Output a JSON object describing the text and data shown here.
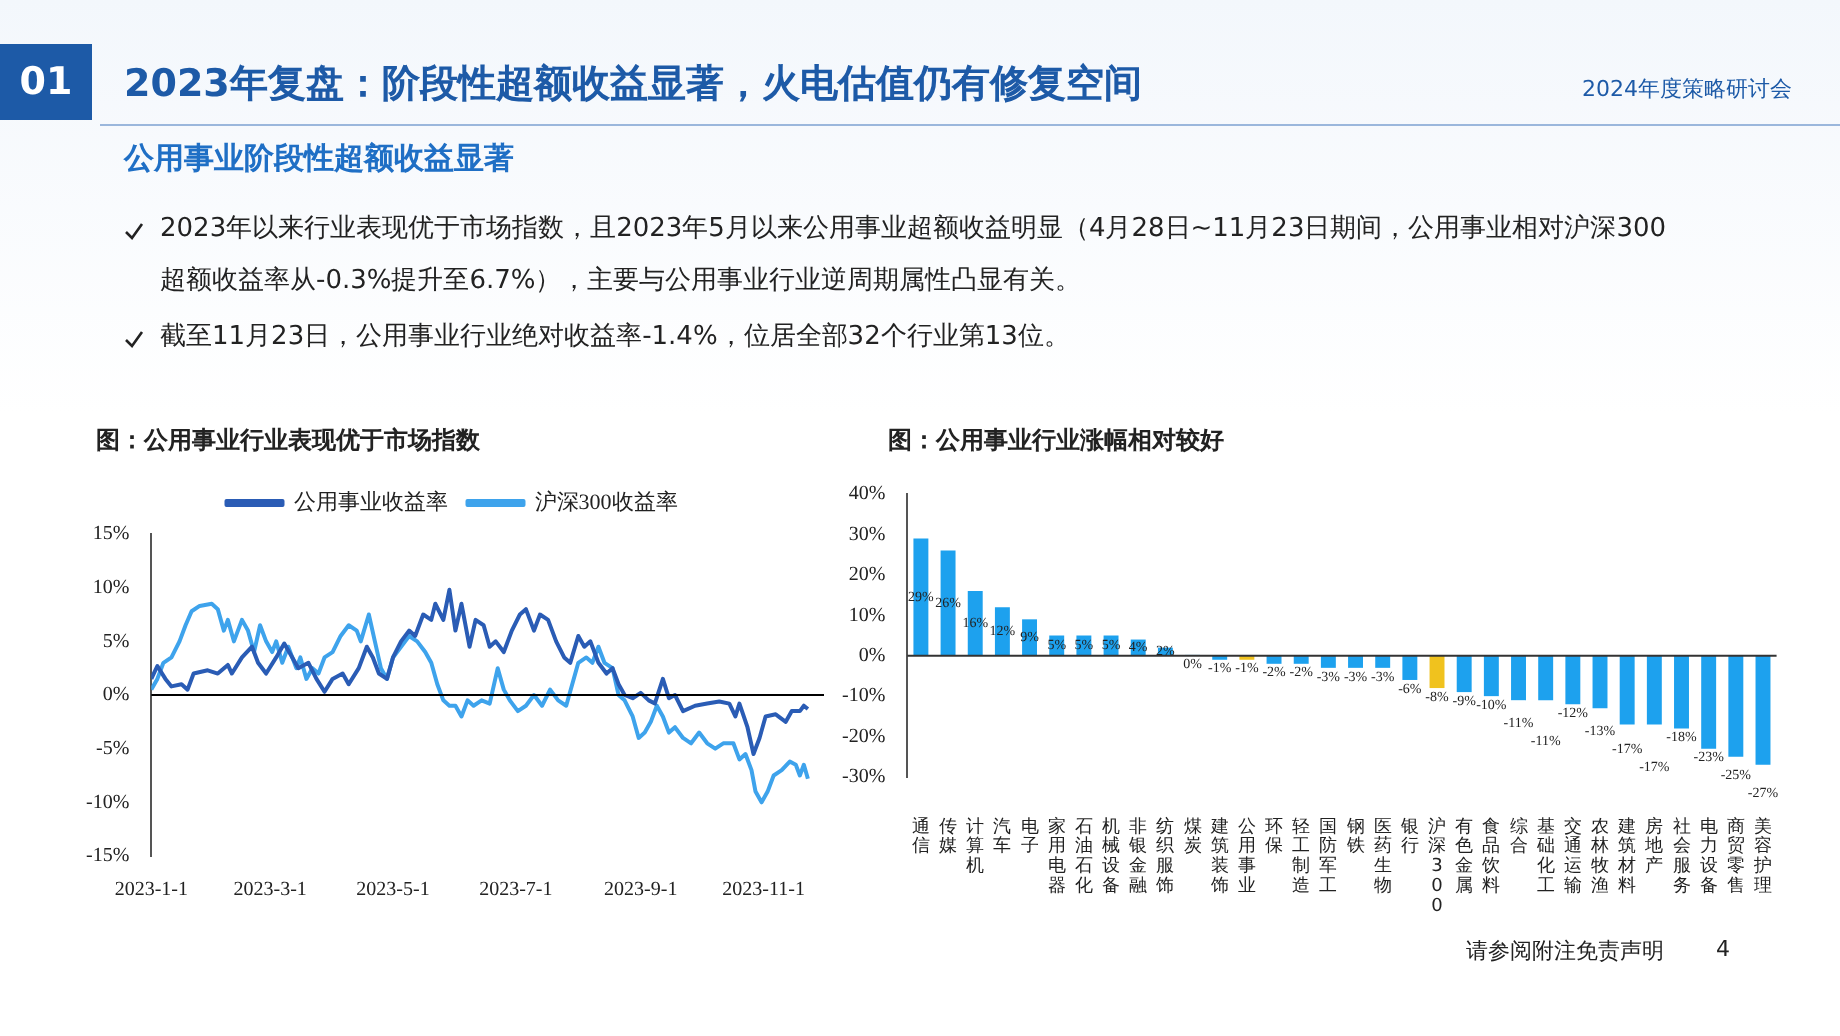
{
  "chart_data": [
    {
      "type": "other",
      "title": "2023年复盘：阶段性超额收益显著，火电估值仍有修复空间",
      "subtitle": "公用事业阶段性超额收益显著",
      "annotations": [
        "01",
        "2024年度策略研讨会",
        "2023年以来行业表现优于市场指数，且2023年5月以来公用事业超额收益明显（4月28日~11月23日期间，公用事业相对沪深300超额收益率从-0.3%提升至6.7%），主要与公用事业行业逆周期属性凸显有关。",
        "截至11月23日，公用事业行业绝对收益率-1.4%，位居全部32个行业第13位。",
        "请参阅附注免责声明",
        "4"
      ]
    },
    {
      "type": "line",
      "title": "图：公用事业行业表现优于市场指数",
      "legend": "top",
      "xlim": [
        "2023-01-01",
        "2023-12-01"
      ],
      "xticks": [
        {
          "value": "2023-01-01",
          "label": "2023-1-1"
        },
        {
          "value": "2023-03-01",
          "label": "2023-3-1"
        },
        {
          "value": "2023-05-01",
          "label": "2023-5-1"
        },
        {
          "value": "2023-07-01",
          "label": "2023-7-1"
        },
        {
          "value": "2023-09-01",
          "label": "2023-9-1"
        },
        {
          "value": "2023-11-01",
          "label": "2023-11-1"
        }
      ],
      "ylim": [
        -15,
        15
      ],
      "yticks": [
        {
          "value": -15,
          "label": "-15%"
        },
        {
          "value": -10,
          "label": "-10%"
        },
        {
          "value": -5,
          "label": "-5%"
        },
        {
          "value": 0,
          "label": "0%"
        },
        {
          "value": 5,
          "label": "5%"
        },
        {
          "value": 10,
          "label": "10%"
        },
        {
          "value": 15,
          "label": "15%"
        }
      ],
      "ref_lines": [
        {
          "axis": "y",
          "value": 0,
          "color": "#000000"
        }
      ],
      "series": [
        {
          "name": "公用事业收益率",
          "color": "#2a5cb5",
          "x": [
            "2023-01-01",
            "2023-01-04",
            "2023-01-08",
            "2023-01-11",
            "2023-01-16",
            "2023-01-19",
            "2023-01-22",
            "2023-01-29",
            "2023-02-03",
            "2023-02-08",
            "2023-02-10",
            "2023-02-15",
            "2023-02-20",
            "2023-02-23",
            "2023-02-27",
            "2023-03-04",
            "2023-03-08",
            "2023-03-12",
            "2023-03-15",
            "2023-03-20",
            "2023-03-24",
            "2023-03-28",
            "2023-04-01",
            "2023-04-06",
            "2023-04-09",
            "2023-04-14",
            "2023-04-18",
            "2023-04-21",
            "2023-04-24",
            "2023-04-28",
            "2023-05-01",
            "2023-05-05",
            "2023-05-09",
            "2023-05-12",
            "2023-05-16",
            "2023-05-20",
            "2023-05-22",
            "2023-05-26",
            "2023-05-29",
            "2023-06-01",
            "2023-06-04",
            "2023-06-08",
            "2023-06-11",
            "2023-06-15",
            "2023-06-18",
            "2023-06-21",
            "2023-06-25",
            "2023-06-29",
            "2023-07-03",
            "2023-07-06",
            "2023-07-10",
            "2023-07-13",
            "2023-07-17",
            "2023-07-21",
            "2023-07-25",
            "2023-07-28",
            "2023-08-01",
            "2023-08-04",
            "2023-08-07",
            "2023-08-11",
            "2023-08-15",
            "2023-08-18",
            "2023-08-21",
            "2023-08-24",
            "2023-08-28",
            "2023-09-01",
            "2023-09-05",
            "2023-09-08",
            "2023-09-12",
            "2023-09-15",
            "2023-09-18",
            "2023-09-22",
            "2023-09-28",
            "2023-10-04",
            "2023-10-10",
            "2023-10-15",
            "2023-10-18",
            "2023-10-20",
            "2023-10-24",
            "2023-10-27",
            "2023-10-30",
            "2023-11-02",
            "2023-11-07",
            "2023-11-12",
            "2023-11-15",
            "2023-11-19",
            "2023-11-21",
            "2023-11-23"
          ],
          "values": [
            1.5,
            2.7,
            1.5,
            0.8,
            1.0,
            0.5,
            2.0,
            2.3,
            2.0,
            2.8,
            2.0,
            3.5,
            4.5,
            3.0,
            2.0,
            3.5,
            4.8,
            3.5,
            2.5,
            3.0,
            1.5,
            0.3,
            1.5,
            2.0,
            1.0,
            2.5,
            4.5,
            3.5,
            2.0,
            1.5,
            3.5,
            5.0,
            6.0,
            5.5,
            7.5,
            7.0,
            8.5,
            7.0,
            9.8,
            6.0,
            8.5,
            4.5,
            7.0,
            6.5,
            4.5,
            5.0,
            4.0,
            6.0,
            7.5,
            8.0,
            6.0,
            7.5,
            7.0,
            5.0,
            3.5,
            3.0,
            5.5,
            4.5,
            5.0,
            3.0,
            2.0,
            2.5,
            1.0,
            0.0,
            -0.3,
            0.2,
            -0.5,
            -0.8,
            1.5,
            -0.3,
            0.0,
            -1.5,
            -1.0,
            -0.8,
            -0.6,
            -0.8,
            -2.0,
            -0.8,
            -3.0,
            -5.5,
            -4.0,
            -2.0,
            -1.8,
            -2.5,
            -1.5,
            -1.5,
            -1.0,
            -1.3
          ]
        },
        {
          "name": "沪深300收益率",
          "color": "#3ea3ec",
          "x": [
            "2023-01-01",
            "2023-01-04",
            "2023-01-07",
            "2023-01-11",
            "2023-01-15",
            "2023-01-18",
            "2023-01-21",
            "2023-01-25",
            "2023-01-31",
            "2023-02-03",
            "2023-02-06",
            "2023-02-08",
            "2023-02-11",
            "2023-02-15",
            "2023-02-18",
            "2023-02-21",
            "2023-02-24",
            "2023-02-27",
            "2023-03-02",
            "2023-03-04",
            "2023-03-07",
            "2023-03-10",
            "2023-03-14",
            "2023-03-16",
            "2023-03-19",
            "2023-03-22",
            "2023-03-25",
            "2023-03-28",
            "2023-04-01",
            "2023-04-05",
            "2023-04-09",
            "2023-04-13",
            "2023-04-15",
            "2023-04-19",
            "2023-04-22",
            "2023-04-25",
            "2023-04-28",
            "2023-05-01",
            "2023-05-05",
            "2023-05-09",
            "2023-05-13",
            "2023-05-17",
            "2023-05-20",
            "2023-05-23",
            "2023-05-26",
            "2023-05-29",
            "2023-06-01",
            "2023-06-04",
            "2023-06-07",
            "2023-06-10",
            "2023-06-14",
            "2023-06-18",
            "2023-06-22",
            "2023-06-25",
            "2023-06-28",
            "2023-07-02",
            "2023-07-06",
            "2023-07-10",
            "2023-07-14",
            "2023-07-18",
            "2023-07-22",
            "2023-07-26",
            "2023-07-29",
            "2023-08-01",
            "2023-08-05",
            "2023-08-08",
            "2023-08-11",
            "2023-08-14",
            "2023-08-18",
            "2023-08-21",
            "2023-08-24",
            "2023-08-28",
            "2023-08-31",
            "2023-09-03",
            "2023-09-06",
            "2023-09-09",
            "2023-09-12",
            "2023-09-15",
            "2023-09-18",
            "2023-09-22",
            "2023-09-26",
            "2023-09-30",
            "2023-10-04",
            "2023-10-08",
            "2023-10-12",
            "2023-10-17",
            "2023-10-20",
            "2023-10-23",
            "2023-10-26",
            "2023-10-28",
            "2023-10-31",
            "2023-11-03",
            "2023-11-06",
            "2023-11-10",
            "2023-11-14",
            "2023-11-17",
            "2023-11-19",
            "2023-11-21",
            "2023-11-23"
          ],
          "values": [
            0.5,
            1.5,
            3.0,
            3.5,
            5.0,
            6.5,
            7.8,
            8.3,
            8.5,
            8.0,
            6.0,
            7.0,
            5.0,
            7.0,
            6.0,
            4.0,
            6.5,
            5.0,
            4.0,
            5.0,
            3.0,
            4.5,
            2.5,
            3.5,
            1.5,
            2.5,
            2.0,
            3.5,
            4.0,
            5.5,
            6.5,
            6.0,
            5.0,
            7.5,
            5.0,
            2.5,
            1.5,
            3.5,
            4.5,
            5.5,
            5.0,
            4.0,
            3.0,
            1.0,
            -0.5,
            -1.0,
            -1.0,
            -2.0,
            -0.5,
            -1.0,
            -0.5,
            -0.8,
            2.5,
            0.5,
            -0.5,
            -1.5,
            -1.0,
            0.0,
            -1.0,
            0.5,
            -0.5,
            -1.0,
            1.0,
            3.0,
            3.5,
            3.0,
            4.5,
            3.0,
            2.5,
            0.0,
            -0.5,
            -2.0,
            -4.0,
            -3.5,
            -2.5,
            -1.0,
            -2.0,
            -3.5,
            -3.0,
            -4.0,
            -4.5,
            -3.5,
            -4.5,
            -5.0,
            -4.5,
            -4.5,
            -6.0,
            -5.5,
            -7.0,
            -9.0,
            -10.0,
            -9.0,
            -7.5,
            -7.0,
            -6.2,
            -6.5,
            -7.5,
            -6.5,
            -7.8
          ]
        }
      ]
    },
    {
      "type": "bar",
      "title": "图：公用事业行业涨幅相对较好",
      "categories": [
        "通信",
        "传媒",
        "计算机",
        "汽车",
        "电子",
        "家用电器",
        "石油石化",
        "机械设备",
        "非银金融",
        "纺织服饰",
        "煤炭",
        "建筑装饰",
        "公用事业",
        "环保",
        "轻工制造",
        "国防军工",
        "钢铁",
        "医药生物",
        "银行",
        "沪深300",
        "有色金属",
        "食品饮料",
        "综合",
        "基础化工",
        "交通运输",
        "农林牧渔",
        "建筑材料",
        "房地产",
        "社会服务",
        "电力设备",
        "商贸零售",
        "美容护理"
      ],
      "values": [
        29,
        26,
        16,
        12,
        9,
        5,
        5,
        5,
        4,
        2,
        0.2,
        -1,
        -1,
        -2,
        -2,
        -3,
        -3,
        -3,
        -6,
        -8,
        -9,
        -10,
        -11,
        -11,
        -12,
        -13,
        -17,
        -17,
        -18,
        -23,
        -25,
        -27
      ],
      "value_labels": [
        "29%",
        "26%",
        "16%",
        "12%",
        "9%",
        "5%",
        "5%",
        "5%",
        "4%",
        "2%",
        "0%",
        "-1%",
        "-1%",
        "-2%",
        "-2%",
        "-3%",
        "-3%",
        "-3%",
        "-6%",
        "-8%",
        "-9%",
        "-10%",
        "-11%",
        "-11%",
        "-12%",
        "-13%",
        "-17%",
        "-17%",
        "-18%",
        "-23%",
        "-25%",
        "-27%"
      ],
      "colors": [
        "#1da1ee",
        "#1da1ee",
        "#1da1ee",
        "#1da1ee",
        "#1da1ee",
        "#1da1ee",
        "#1da1ee",
        "#1da1ee",
        "#1da1ee",
        "#1da1ee",
        "#1da1ee",
        "#1da1ee",
        "#f0c21e",
        "#1da1ee",
        "#1da1ee",
        "#1da1ee",
        "#1da1ee",
        "#1da1ee",
        "#1da1ee",
        "#f0c21e",
        "#1da1ee",
        "#1da1ee",
        "#1da1ee",
        "#1da1ee",
        "#1da1ee",
        "#1da1ee",
        "#1da1ee",
        "#1da1ee",
        "#1da1ee",
        "#1da1ee",
        "#1da1ee",
        "#1da1ee"
      ],
      "ylim": [
        -30,
        40
      ],
      "yticks": [
        {
          "value": -30,
          "label": "-30%"
        },
        {
          "value": -20,
          "label": "-20%"
        },
        {
          "value": -10,
          "label": "-10%"
        },
        {
          "value": 0,
          "label": "0%"
        },
        {
          "value": 10,
          "label": "10%"
        },
        {
          "value": 20,
          "label": "20%"
        },
        {
          "value": 30,
          "label": "30%"
        },
        {
          "value": 40,
          "label": "40%"
        }
      ],
      "ref_lines": [
        {
          "axis": "y",
          "value": 0,
          "color": "#333333"
        }
      ]
    }
  ]
}
